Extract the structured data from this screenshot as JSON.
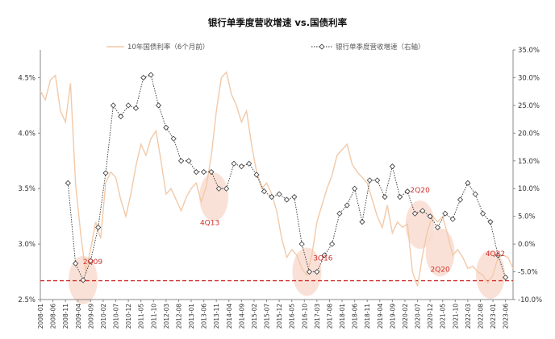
{
  "chart_data": {
    "type": "line",
    "title": "银行单季度营收增速 vs.国债利率",
    "legend_placement": "top",
    "left_axis": {
      "min": 2.5,
      "max": 4.75,
      "ticks": [
        "2.5%",
        "3.0%",
        "3.5%",
        "4.0%",
        "4.5%"
      ],
      "tick_values": [
        2.5,
        3.0,
        3.5,
        4.0,
        4.5
      ]
    },
    "right_axis": {
      "min": -10,
      "max": 35,
      "ticks": [
        "-10.0%",
        "-5.0%",
        "0.0%",
        "5.0%",
        "10.0%",
        "15.0%",
        "20.0%",
        "25.0%",
        "30.0%",
        "35.0%"
      ],
      "tick_values": [
        -10,
        -5,
        0,
        5,
        10,
        15,
        20,
        25,
        30,
        35
      ]
    },
    "x_ticks": [
      "2008-01",
      "2008-06",
      "2008-11",
      "2009-04",
      "2009-09",
      "2010-02",
      "2010-07",
      "2010-12",
      "2011-05",
      "2011-10",
      "2012-03",
      "2012-08",
      "2013-01",
      "2013-06",
      "2013-11",
      "2014-04",
      "2014-09",
      "2015-02",
      "2015-07",
      "2015-12",
      "2016-05",
      "2016-10",
      "2017-03",
      "2017-08",
      "2018-01",
      "2018-06",
      "2018-11",
      "2019-04",
      "2019-09",
      "2020-02",
      "2020-07",
      "2020-12",
      "2021-05",
      "2021-10",
      "2022-03",
      "2022-08",
      "2023-01",
      "2023-06"
    ],
    "series": [
      {
        "name": "10年国债利率（6个月前）",
        "axis": "left",
        "color": "#f2c9a8",
        "x": [
          "2008-01",
          "2008-03",
          "2008-05",
          "2008-07",
          "2008-09",
          "2008-11",
          "2009-01",
          "2009-03",
          "2009-05",
          "2009-07",
          "2009-09",
          "2009-11",
          "2010-01",
          "2010-03",
          "2010-05",
          "2010-07",
          "2010-09",
          "2010-11",
          "2011-01",
          "2011-03",
          "2011-05",
          "2011-07",
          "2011-09",
          "2011-11",
          "2012-01",
          "2012-03",
          "2012-05",
          "2012-07",
          "2012-09",
          "2012-11",
          "2013-01",
          "2013-03",
          "2013-05",
          "2013-07",
          "2013-09",
          "2013-11",
          "2014-01",
          "2014-03",
          "2014-05",
          "2014-07",
          "2014-09",
          "2014-11",
          "2015-01",
          "2015-03",
          "2015-05",
          "2015-07",
          "2015-09",
          "2015-11",
          "2016-01",
          "2016-03",
          "2016-05",
          "2016-07",
          "2016-09",
          "2016-11",
          "2017-01",
          "2017-03",
          "2017-05",
          "2017-07",
          "2017-09",
          "2017-11",
          "2018-01",
          "2018-03",
          "2018-05",
          "2018-07",
          "2018-09",
          "2018-11",
          "2019-01",
          "2019-03",
          "2019-05",
          "2019-07",
          "2019-09",
          "2019-11",
          "2020-01",
          "2020-03",
          "2020-05",
          "2020-07",
          "2020-09",
          "2020-11",
          "2021-01",
          "2021-03",
          "2021-05",
          "2021-07",
          "2021-09",
          "2021-11",
          "2022-01",
          "2022-03",
          "2022-05",
          "2022-07",
          "2022-09",
          "2022-11",
          "2023-01",
          "2023-03",
          "2023-05",
          "2023-07",
          "2023-09"
        ],
        "values": [
          4.38,
          4.3,
          4.48,
          4.52,
          4.2,
          4.1,
          4.45,
          3.55,
          3.1,
          2.75,
          2.95,
          3.2,
          3.05,
          3.55,
          3.65,
          3.6,
          3.4,
          3.25,
          3.45,
          3.7,
          3.9,
          3.8,
          3.95,
          4.02,
          3.75,
          3.45,
          3.5,
          3.4,
          3.3,
          3.42,
          3.5,
          3.55,
          3.38,
          3.52,
          3.8,
          4.2,
          4.5,
          4.55,
          4.35,
          4.25,
          4.1,
          4.2,
          3.9,
          3.65,
          3.5,
          3.55,
          3.45,
          3.3,
          3.05,
          2.88,
          2.95,
          2.9,
          2.78,
          2.72,
          2.9,
          3.2,
          3.35,
          3.5,
          3.62,
          3.8,
          3.85,
          3.9,
          3.72,
          3.65,
          3.6,
          3.55,
          3.4,
          3.25,
          3.15,
          3.35,
          3.1,
          3.2,
          3.15,
          3.18,
          2.75,
          2.62,
          2.9,
          3.12,
          3.25,
          3.2,
          3.25,
          3.08,
          2.9,
          2.95,
          2.88,
          2.78,
          2.8,
          2.75,
          2.72,
          2.65,
          2.72,
          2.88,
          2.9,
          2.88,
          2.78
        ]
      },
      {
        "name": "银行单季度营收增速（右轴）",
        "axis": "right",
        "color": "#333333",
        "x": [
          "2008-12",
          "2009-03",
          "2009-06",
          "2009-09",
          "2009-12",
          "2010-03",
          "2010-06",
          "2010-09",
          "2010-12",
          "2011-03",
          "2011-06",
          "2011-09",
          "2011-12",
          "2012-03",
          "2012-06",
          "2012-09",
          "2012-12",
          "2013-03",
          "2013-06",
          "2013-09",
          "2013-12",
          "2014-03",
          "2014-06",
          "2014-09",
          "2014-12",
          "2015-03",
          "2015-06",
          "2015-09",
          "2015-12",
          "2016-03",
          "2016-06",
          "2016-09",
          "2016-12",
          "2017-03",
          "2017-06",
          "2017-09",
          "2017-12",
          "2018-03",
          "2018-06",
          "2018-09",
          "2018-12",
          "2019-03",
          "2019-06",
          "2019-09",
          "2019-12",
          "2020-03",
          "2020-06",
          "2020-09",
          "2020-12",
          "2021-03",
          "2021-06",
          "2021-09",
          "2021-12",
          "2022-03",
          "2022-06",
          "2022-09",
          "2022-12",
          "2023-03",
          "2023-06"
        ],
        "values": [
          11.0,
          -3.5,
          -6.5,
          -3.0,
          3.0,
          12.8,
          25.0,
          23.0,
          25.0,
          24.5,
          30.0,
          30.5,
          25.0,
          21.0,
          19.0,
          15.0,
          15.0,
          13.0,
          13.0,
          13.0,
          10.0,
          10.0,
          14.5,
          14.0,
          14.5,
          12.5,
          9.5,
          8.5,
          9.0,
          8.0,
          8.5,
          0.0,
          -5.0,
          -5.0,
          -2.0,
          0.0,
          5.5,
          7.0,
          10.0,
          4.0,
          11.5,
          11.5,
          8.5,
          14.0,
          8.5,
          9.5,
          5.5,
          6.0,
          5.0,
          3.0,
          5.5,
          4.5,
          8.0,
          11.0,
          9.0,
          5.5,
          4.0,
          -2.0,
          -6.0
        ]
      }
    ],
    "reference_line": {
      "axis": "left",
      "value": 2.67,
      "color": "#d0312d",
      "style": "dashed"
    },
    "annotations": [
      {
        "label": "2Q09",
        "x": "2009-06",
        "y_right": -6.5,
        "text_dx": 12,
        "text_dy": -20
      },
      {
        "label": "4Q13",
        "x": "2013-10",
        "y_right": 8.5,
        "text_dx": -5,
        "text_dy": 35
      },
      {
        "label": "3Q16",
        "x": "2016-11",
        "y_right": -5.0,
        "text_dx": 20,
        "text_dy": -14
      },
      {
        "label": "2Q20",
        "x": "2020-08",
        "y_right": 3.5,
        "text_dx": 0,
        "text_dy": -40
      },
      {
        "label": "2Q20",
        "x": "2021-04",
        "y_right": -1.5,
        "text_dx": 0,
        "text_dy": 24
      },
      {
        "label": "4Q22",
        "x": "2022-12",
        "y_right": -5.5,
        "text_dx": 6,
        "text_dy": -23
      }
    ]
  }
}
